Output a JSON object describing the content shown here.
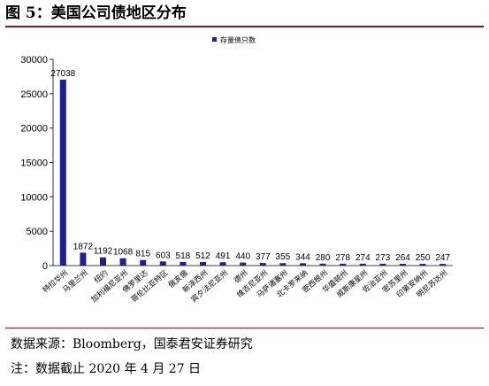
{
  "figure": {
    "title": "图 5：美国公司债地区分布",
    "source": "数据来源：Bloomberg，国泰君安证券研究",
    "note": "注：数据截止 2020 年 4 月 27 日"
  },
  "chart_data": {
    "type": "bar",
    "title": "",
    "xlabel": "",
    "ylabel": "",
    "categories": [
      "特拉华州",
      "马里兰州",
      "纽约",
      "加利福尼亚州",
      "佛罗里达",
      "哥伦比亚特区",
      "俄亥俄",
      "新泽西州",
      "宾夕法尼亚州",
      "德州",
      "维吉尼亚州",
      "马萨诸塞州",
      "北卡罗来纳",
      "密西根州",
      "华盛顿州",
      "威斯康星州",
      "佐治亚州",
      "密苏里州",
      "印第安纳州",
      "明尼苏达州"
    ],
    "series": [
      {
        "name": "存量债只数",
        "values": [
          27038,
          1872,
          1192,
          1068,
          815,
          603,
          518,
          512,
          491,
          440,
          377,
          355,
          344,
          280,
          278,
          274,
          273,
          264,
          250,
          247
        ]
      }
    ],
    "ylim": [
      0,
      30000
    ],
    "yticks": [
      0,
      5000,
      10000,
      15000,
      20000,
      25000,
      30000
    ],
    "grid": false,
    "legend_position": "top-left",
    "colors": {
      "bar": "#1f1f8f"
    }
  }
}
